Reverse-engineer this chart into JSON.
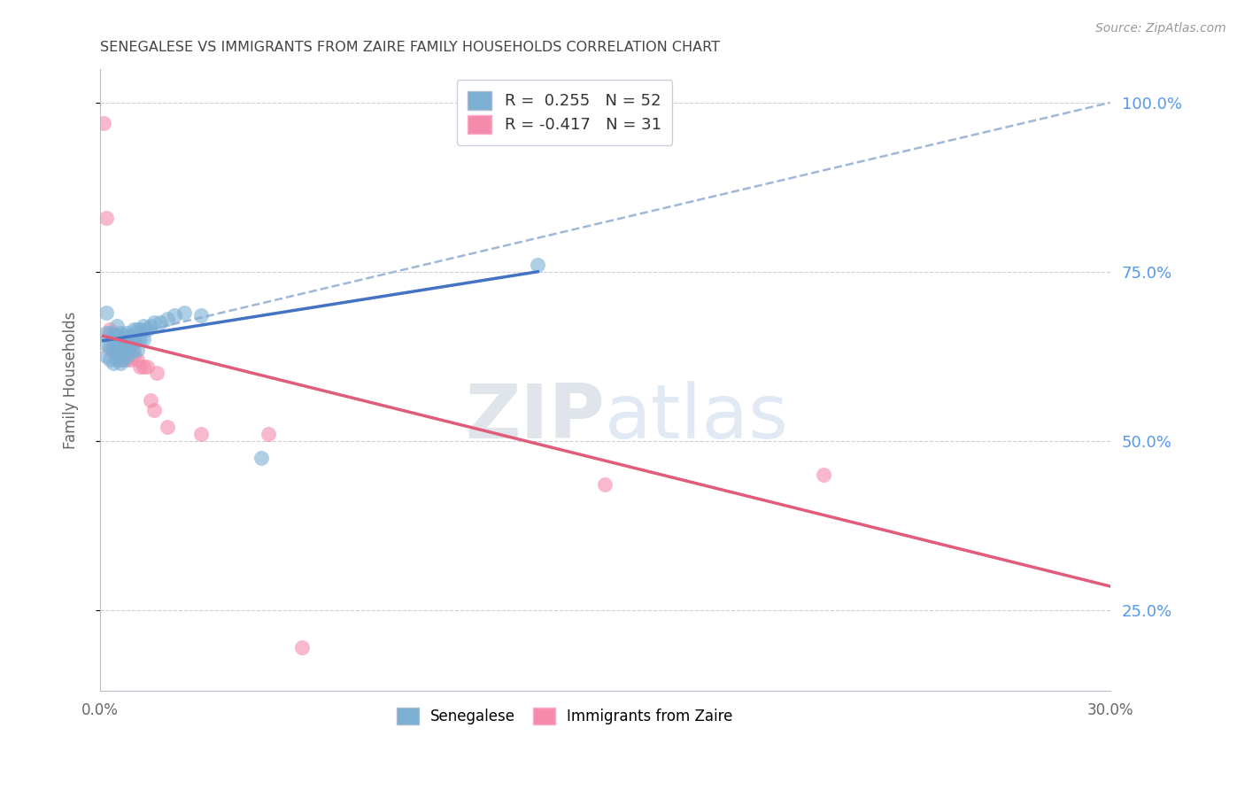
{
  "title": "SENEGALESE VS IMMIGRANTS FROM ZAIRE FAMILY HOUSEHOLDS CORRELATION CHART",
  "source": "Source: ZipAtlas.com",
  "ylabel": "Family Households",
  "xlim": [
    0.0,
    0.3
  ],
  "ylim": [
    0.13,
    1.05
  ],
  "yticks": [
    0.25,
    0.5,
    0.75,
    1.0
  ],
  "ytick_labels": [
    "25.0%",
    "50.0%",
    "75.0%",
    "100.0%"
  ],
  "xticks": [
    0.0,
    0.05,
    0.1,
    0.15,
    0.2,
    0.25,
    0.3
  ],
  "xtick_labels": [
    "0.0%",
    "",
    "",
    "",
    "",
    "",
    "30.0%"
  ],
  "senegalese_R": 0.255,
  "senegalese_N": 52,
  "zaire_R": -0.417,
  "zaire_N": 31,
  "blue_color": "#7BAFD4",
  "pink_color": "#F48BAA",
  "blue_line_color": "#4472C4",
  "pink_line_color": "#E05C7A",
  "dashed_line_color": "#A0B8D8",
  "watermark_color": "#C8D8E8",
  "grid_color": "#CCCCDD",
  "title_color": "#444444",
  "right_axis_color": "#5599EE",
  "senegalese_x": [
    0.001,
    0.002,
    0.002,
    0.002,
    0.003,
    0.003,
    0.003,
    0.004,
    0.004,
    0.004,
    0.004,
    0.005,
    0.005,
    0.005,
    0.005,
    0.005,
    0.006,
    0.006,
    0.006,
    0.006,
    0.006,
    0.007,
    0.007,
    0.007,
    0.007,
    0.008,
    0.008,
    0.008,
    0.008,
    0.009,
    0.009,
    0.009,
    0.01,
    0.01,
    0.01,
    0.011,
    0.011,
    0.011,
    0.012,
    0.012,
    0.013,
    0.013,
    0.014,
    0.015,
    0.016,
    0.018,
    0.02,
    0.022,
    0.025,
    0.03,
    0.048,
    0.13
  ],
  "senegalese_y": [
    0.645,
    0.69,
    0.66,
    0.625,
    0.66,
    0.64,
    0.62,
    0.655,
    0.645,
    0.635,
    0.615,
    0.67,
    0.655,
    0.645,
    0.635,
    0.62,
    0.66,
    0.65,
    0.64,
    0.63,
    0.615,
    0.655,
    0.645,
    0.635,
    0.62,
    0.66,
    0.65,
    0.64,
    0.625,
    0.655,
    0.645,
    0.63,
    0.665,
    0.65,
    0.635,
    0.665,
    0.65,
    0.635,
    0.665,
    0.65,
    0.67,
    0.65,
    0.665,
    0.67,
    0.675,
    0.675,
    0.68,
    0.685,
    0.69,
    0.685,
    0.475,
    0.76
  ],
  "zaire_x": [
    0.001,
    0.002,
    0.003,
    0.003,
    0.004,
    0.004,
    0.005,
    0.005,
    0.006,
    0.006,
    0.007,
    0.007,
    0.008,
    0.008,
    0.009,
    0.009,
    0.01,
    0.01,
    0.011,
    0.012,
    0.013,
    0.014,
    0.015,
    0.016,
    0.017,
    0.02,
    0.03,
    0.05,
    0.15,
    0.215,
    0.06
  ],
  "zaire_y": [
    0.97,
    0.83,
    0.665,
    0.635,
    0.66,
    0.635,
    0.655,
    0.64,
    0.645,
    0.62,
    0.645,
    0.625,
    0.645,
    0.62,
    0.64,
    0.62,
    0.645,
    0.625,
    0.62,
    0.61,
    0.61,
    0.61,
    0.56,
    0.545,
    0.6,
    0.52,
    0.51,
    0.51,
    0.435,
    0.45,
    0.195
  ],
  "blue_line_x": [
    0.001,
    0.13
  ],
  "blue_line_y": [
    0.648,
    0.75
  ],
  "dashed_line_x": [
    0.001,
    0.3
  ],
  "dashed_line_y": [
    0.648,
    1.0
  ],
  "pink_line_x": [
    0.001,
    0.3
  ],
  "pink_line_y": [
    0.655,
    0.285
  ]
}
